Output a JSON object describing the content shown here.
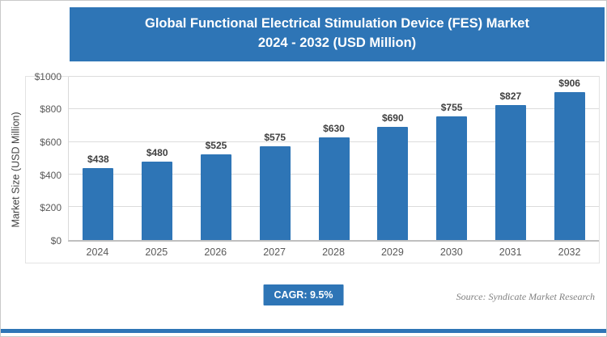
{
  "header": {
    "title_line1": "Global Functional Electrical Stimulation Device (FES) Market",
    "title_line2": "2024 - 2032 (USD Million)"
  },
  "chart_data": {
    "type": "bar",
    "title": "Global Functional Electrical Stimulation Device (FES) Market 2024 - 2032 (USD Million)",
    "categories": [
      "2024",
      "2025",
      "2026",
      "2027",
      "2028",
      "2029",
      "2030",
      "2031",
      "2032"
    ],
    "values": [
      438,
      480,
      525,
      575,
      630,
      690,
      755,
      827,
      906
    ],
    "value_labels": [
      "$438",
      "$480",
      "$525",
      "$575",
      "$630",
      "$690",
      "$755",
      "$827",
      "$906"
    ],
    "xlabel": "",
    "ylabel": "Market Size (USD Million)",
    "ylim": [
      0,
      1000
    ],
    "yticks": [
      0,
      200,
      400,
      600,
      800,
      1000
    ],
    "ytick_labels": [
      "$0",
      "$200",
      "$400",
      "$600",
      "$800",
      "$1000"
    ],
    "grid": true,
    "legend": false,
    "bar_color": "#2e75b6"
  },
  "footer": {
    "cagr_label": "CAGR: 9.5%",
    "source": "Source: Syndicate Market Research"
  },
  "colors": {
    "accent": "#2e75b6"
  }
}
